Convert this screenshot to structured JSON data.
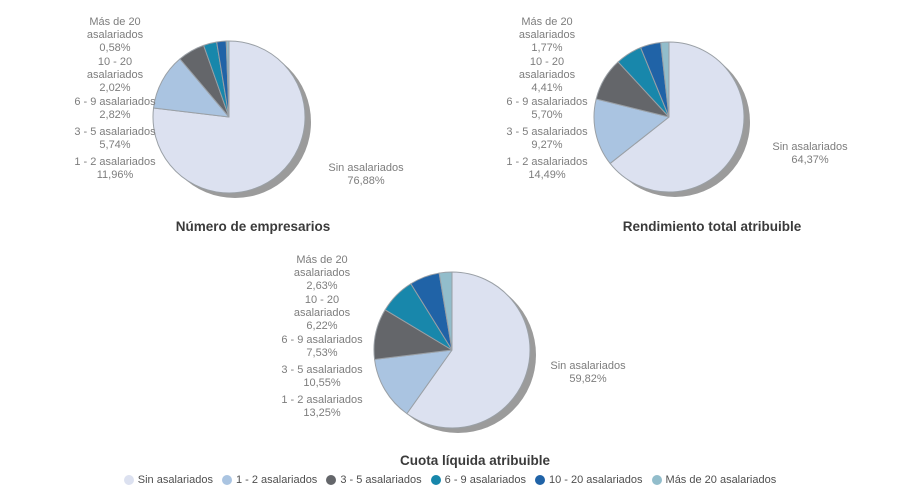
{
  "style": {
    "background": "#ffffff",
    "slice_outline": "#9aa0a6",
    "shadow_color": "#9b9b9b",
    "slice_label_color": "#7d7d7d",
    "title_color": "#3b3b3b",
    "legend_text_color": "#4f4f4f"
  },
  "legend": {
    "items": [
      {
        "label": "Sin asalariados",
        "color": "#dce1f0"
      },
      {
        "label": "1 - 2 asalariados",
        "color": "#aac4e1"
      },
      {
        "label": "3 - 5 asalariados",
        "color": "#64666a"
      },
      {
        "label": "6 - 9 asalariados",
        "color": "#1887ab"
      },
      {
        "label": "10 - 20 asalariados",
        "color": "#2063a7"
      },
      {
        "label": "Más de 20 asalariados",
        "color": "#92bdcb"
      }
    ]
  },
  "chart_data": [
    {
      "type": "pie",
      "title": "Número de empresarios",
      "start_angle": "12 o'clock",
      "direction": "clockwise",
      "categories": [
        "Sin asalariados",
        "1 - 2 asalariados",
        "3 - 5 asalariados",
        "6 - 9 asalariados",
        "10 - 20 asalariados",
        "Más de 20 asalariados"
      ],
      "slices": [
        {
          "name": "Sin asalariados",
          "value": 76.88,
          "pct_label": "76,88%",
          "color": "#dce1f0"
        },
        {
          "name": "1 - 2 asalariados",
          "value": 11.96,
          "pct_label": "11,96%",
          "color": "#aac4e1"
        },
        {
          "name": "3 - 5 asalariados",
          "value": 5.74,
          "pct_label": "5,74%",
          "color": "#64666a"
        },
        {
          "name": "6 - 9 asalariados",
          "value": 2.82,
          "pct_label": "2,82%",
          "color": "#1887ab"
        },
        {
          "name": "10 - 20 asalariados",
          "value": 2.02,
          "pct_label": "2,02%",
          "color": "#2063a7"
        },
        {
          "name": "Más de 20 asalariados",
          "value": 0.58,
          "pct_label": "0,58%",
          "color": "#92bdcb"
        }
      ],
      "left_labels": [
        {
          "lines": [
            "Más de 20",
            "asalariados",
            "0,58%"
          ]
        },
        {
          "lines": [
            "10 - 20",
            "asalariados",
            "2,02%"
          ]
        },
        {
          "lines": [
            "6 - 9 asalariados",
            "2,82%"
          ]
        },
        {
          "lines": [
            "3 - 5 asalariados",
            "5,74%"
          ]
        },
        {
          "lines": [
            "1 - 2 asalariados",
            "11,96%"
          ]
        }
      ],
      "right_label": {
        "lines": [
          "Sin asalariados",
          "76,88%"
        ]
      }
    },
    {
      "type": "pie",
      "title": "Rendimiento total atribuible",
      "start_angle": "12 o'clock",
      "direction": "clockwise",
      "categories": [
        "Sin asalariados",
        "1 - 2 asalariados",
        "3 - 5 asalariados",
        "6 - 9 asalariados",
        "10 - 20 asalariados",
        "Más de 20 asalariados"
      ],
      "slices": [
        {
          "name": "Sin asalariados",
          "value": 64.37,
          "pct_label": "64,37%",
          "color": "#dce1f0"
        },
        {
          "name": "1 - 2 asalariados",
          "value": 14.49,
          "pct_label": "14,49%",
          "color": "#aac4e1"
        },
        {
          "name": "3 - 5 asalariados",
          "value": 9.27,
          "pct_label": "9,27%",
          "color": "#64666a"
        },
        {
          "name": "6 - 9 asalariados",
          "value": 5.7,
          "pct_label": "5,70%",
          "color": "#1887ab"
        },
        {
          "name": "10 - 20 asalariados",
          "value": 4.41,
          "pct_label": "4,41%",
          "color": "#2063a7"
        },
        {
          "name": "Más de 20 asalariados",
          "value": 1.77,
          "pct_label": "1,77%",
          "color": "#92bdcb"
        }
      ],
      "left_labels": [
        {
          "lines": [
            "Más de 20",
            "asalariados",
            "1,77%"
          ]
        },
        {
          "lines": [
            "10 - 20",
            "asalariados",
            "4,41%"
          ]
        },
        {
          "lines": [
            "6 - 9 asalariados",
            "5,70%"
          ]
        },
        {
          "lines": [
            "3 - 5 asalariados",
            "9,27%"
          ]
        },
        {
          "lines": [
            "1 - 2 asalariados",
            "14,49%"
          ]
        }
      ],
      "right_label": {
        "lines": [
          "Sin asalariados",
          "64,37%"
        ]
      }
    },
    {
      "type": "pie",
      "title": "Cuota líquida atribuible",
      "start_angle": "12 o'clock",
      "direction": "clockwise",
      "categories": [
        "Sin asalariados",
        "1 - 2 asalariados",
        "3 - 5 asalariados",
        "6 - 9 asalariados",
        "10 - 20 asalariados",
        "Más de 20 asalariados"
      ],
      "slices": [
        {
          "name": "Sin asalariados",
          "value": 59.82,
          "pct_label": "59,82%",
          "color": "#dce1f0"
        },
        {
          "name": "1 - 2 asalariados",
          "value": 13.25,
          "pct_label": "13,25%",
          "color": "#aac4e1"
        },
        {
          "name": "3 - 5 asalariados",
          "value": 10.55,
          "pct_label": "10,55%",
          "color": "#64666a"
        },
        {
          "name": "6 - 9 asalariados",
          "value": 7.53,
          "pct_label": "7,53%",
          "color": "#1887ab"
        },
        {
          "name": "10 - 20 asalariados",
          "value": 6.22,
          "pct_label": "6,22%",
          "color": "#2063a7"
        },
        {
          "name": "Más de 20 asalariados",
          "value": 2.63,
          "pct_label": "2,63%",
          "color": "#92bdcb"
        }
      ],
      "left_labels": [
        {
          "lines": [
            "Más de 20",
            "asalariados",
            "2,63%"
          ]
        },
        {
          "lines": [
            "10 - 20",
            "asalariados",
            "6,22%"
          ]
        },
        {
          "lines": [
            "6 - 9 asalariados",
            "7,53%"
          ]
        },
        {
          "lines": [
            "3 - 5 asalariados",
            "10,55%"
          ]
        },
        {
          "lines": [
            "1 - 2 asalariados",
            "13,25%"
          ]
        }
      ],
      "right_label": {
        "lines": [
          "Sin asalariados",
          "59,82%"
        ]
      }
    }
  ]
}
